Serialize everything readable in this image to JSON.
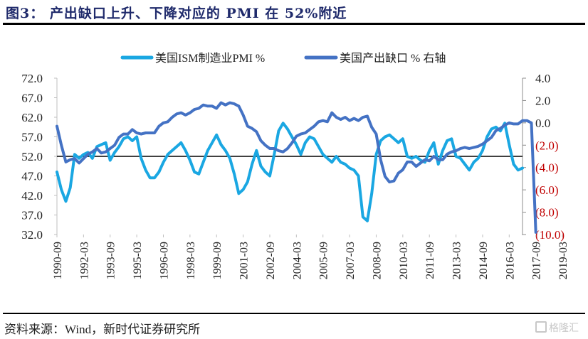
{
  "title": "图3： 产出缺口上升、下降对应的 PMI 在 52%附近",
  "source": "资料来源：Wind，新时代证券研究所",
  "watermark": "格隆汇",
  "colors": {
    "pmi": "#1aa7e2",
    "output_gap": "#4472c4",
    "negative_tick": "#c00000",
    "reference_line": "#000000"
  },
  "chart_data": {
    "type": "line",
    "title": "产出缺口上升、下降对应的 PMI 在 52%附近",
    "x_tick_labels": [
      "1990-09",
      "1992-03",
      "1993-09",
      "1995-03",
      "1996-09",
      "1998-03",
      "1999-09",
      "2001-03",
      "2002-09",
      "2004-03",
      "2005-09",
      "2007-03",
      "2008-09",
      "2010-03",
      "2011-09",
      "2013-03",
      "2014-09",
      "2016-03",
      "2017-09",
      "2019-03"
    ],
    "x_range": [
      "1990-09",
      "2019-12"
    ],
    "left_axis": {
      "label": "美国ISM制造业PMI %",
      "ylim": [
        32.0,
        72.0
      ],
      "ticks": [
        "72.0",
        "67.0",
        "62.0",
        "57.0",
        "52.0",
        "47.0",
        "42.0",
        "37.0",
        "32.0"
      ]
    },
    "right_axis": {
      "label": "美国产出缺口 % 右轴",
      "ylim": [
        -10.0,
        4.0
      ],
      "ticks": [
        "4.0",
        "2.0",
        "0.0",
        "(2.0)",
        "(4.0)",
        "(6.0)",
        "(8.0)",
        "(10.0)"
      ]
    },
    "reference_line": {
      "axis": "left",
      "value": 52.0
    },
    "legend": {
      "position": "top",
      "entries": [
        "美国ISM制造业PMI %",
        "美国产出缺口 % 右轴"
      ]
    },
    "x_quarters_start": "1990-Q3",
    "series": [
      {
        "name": "美国ISM制造业PMI %",
        "axis": "left",
        "values": [
          48.0,
          43.5,
          40.5,
          44.0,
          52.5,
          51.5,
          52.5,
          53.0,
          51.5,
          54.5,
          55.0,
          55.5,
          51.0,
          53.0,
          54.5,
          56.5,
          57.0,
          56.0,
          57.0,
          51.5,
          48.5,
          46.5,
          46.5,
          48.0,
          50.5,
          52.5,
          53.5,
          54.5,
          55.5,
          53.5,
          51.0,
          48.0,
          47.5,
          50.5,
          53.5,
          55.5,
          57.5,
          55.0,
          53.5,
          51.5,
          47.5,
          42.5,
          43.5,
          45.5,
          50.0,
          53.5,
          49.5,
          48.0,
          47.0,
          52.5,
          58.5,
          60.5,
          59.0,
          57.0,
          55.0,
          52.5,
          55.5,
          57.0,
          56.5,
          54.5,
          52.5,
          51.5,
          50.5,
          52.0,
          50.5,
          50.0,
          49.0,
          48.5,
          47.0,
          36.5,
          35.5,
          42.5,
          52.5,
          56.0,
          57.0,
          57.5,
          56.5,
          55.5,
          56.5,
          52.0,
          51.5,
          52.0,
          51.0,
          50.5,
          53.5,
          55.5,
          50.0,
          53.5,
          56.0,
          56.5,
          52.0,
          51.5,
          50.0,
          48.5,
          50.5,
          51.5,
          53.5,
          57.0,
          59.0,
          59.5,
          58.5,
          60.5,
          55.0,
          50.0,
          48.5,
          49.0
        ]
      },
      {
        "name": "美国产出缺口 % 右轴",
        "axis": "right",
        "values": [
          -0.3,
          -2.0,
          -3.5,
          -3.3,
          -3.2,
          -3.6,
          -3.2,
          -2.8,
          -2.6,
          -2.3,
          -2.7,
          -2.6,
          -2.3,
          -2.0,
          -1.3,
          -1.0,
          -1.0,
          -0.6,
          -0.9,
          -1.0,
          -0.9,
          -0.9,
          -0.9,
          -0.3,
          0.0,
          0.1,
          0.5,
          0.8,
          0.9,
          0.7,
          0.9,
          1.2,
          1.3,
          1.6,
          1.5,
          1.5,
          1.3,
          1.8,
          1.6,
          1.8,
          1.7,
          1.5,
          0.7,
          -0.3,
          -0.5,
          -0.8,
          -1.6,
          -2.0,
          -2.3,
          -2.3,
          -2.5,
          -2.6,
          -2.3,
          -1.8,
          -1.2,
          -1.0,
          -0.9,
          -0.6,
          -0.3,
          0.1,
          0.2,
          0.1,
          0.9,
          0.5,
          0.3,
          0.5,
          0.2,
          0.4,
          0.2,
          0.5,
          0.6,
          -0.4,
          -1.0,
          -3.3,
          -4.8,
          -5.3,
          -5.2,
          -4.5,
          -4.2,
          -3.5,
          -3.5,
          -3.9,
          -3.6,
          -3.3,
          -3.4,
          -3.0,
          -3.3,
          -3.3,
          -2.8,
          -2.6,
          -2.5,
          -2.3,
          -2.2,
          -2.3,
          -2.2,
          -2.1,
          -1.9,
          -1.6,
          -1.3,
          -0.7,
          -0.5,
          -0.2,
          0.0,
          -0.1,
          -0.1,
          0.2,
          0.2,
          0.0,
          -9.8
        ]
      }
    ]
  }
}
